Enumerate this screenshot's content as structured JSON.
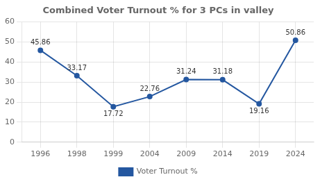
{
  "chart_data": {
    "type": "line",
    "title": "Combined Voter Turnout % for 3 PCs in valley",
    "categories": [
      "1996",
      "1998",
      "1999",
      "2004",
      "2009",
      "2014",
      "2019",
      "2024"
    ],
    "series": [
      {
        "name": "Voter Turnout %",
        "color": "#2457A0",
        "values": [
          45.86,
          33.17,
          17.72,
          22.76,
          31.24,
          31.18,
          19.16,
          50.86
        ]
      }
    ],
    "ylim": [
      0,
      60
    ],
    "yticks": [
      0,
      10,
      20,
      30,
      40,
      50,
      60
    ],
    "grid": true,
    "data_labels": true,
    "legend": "bottom",
    "marker": "circle"
  }
}
